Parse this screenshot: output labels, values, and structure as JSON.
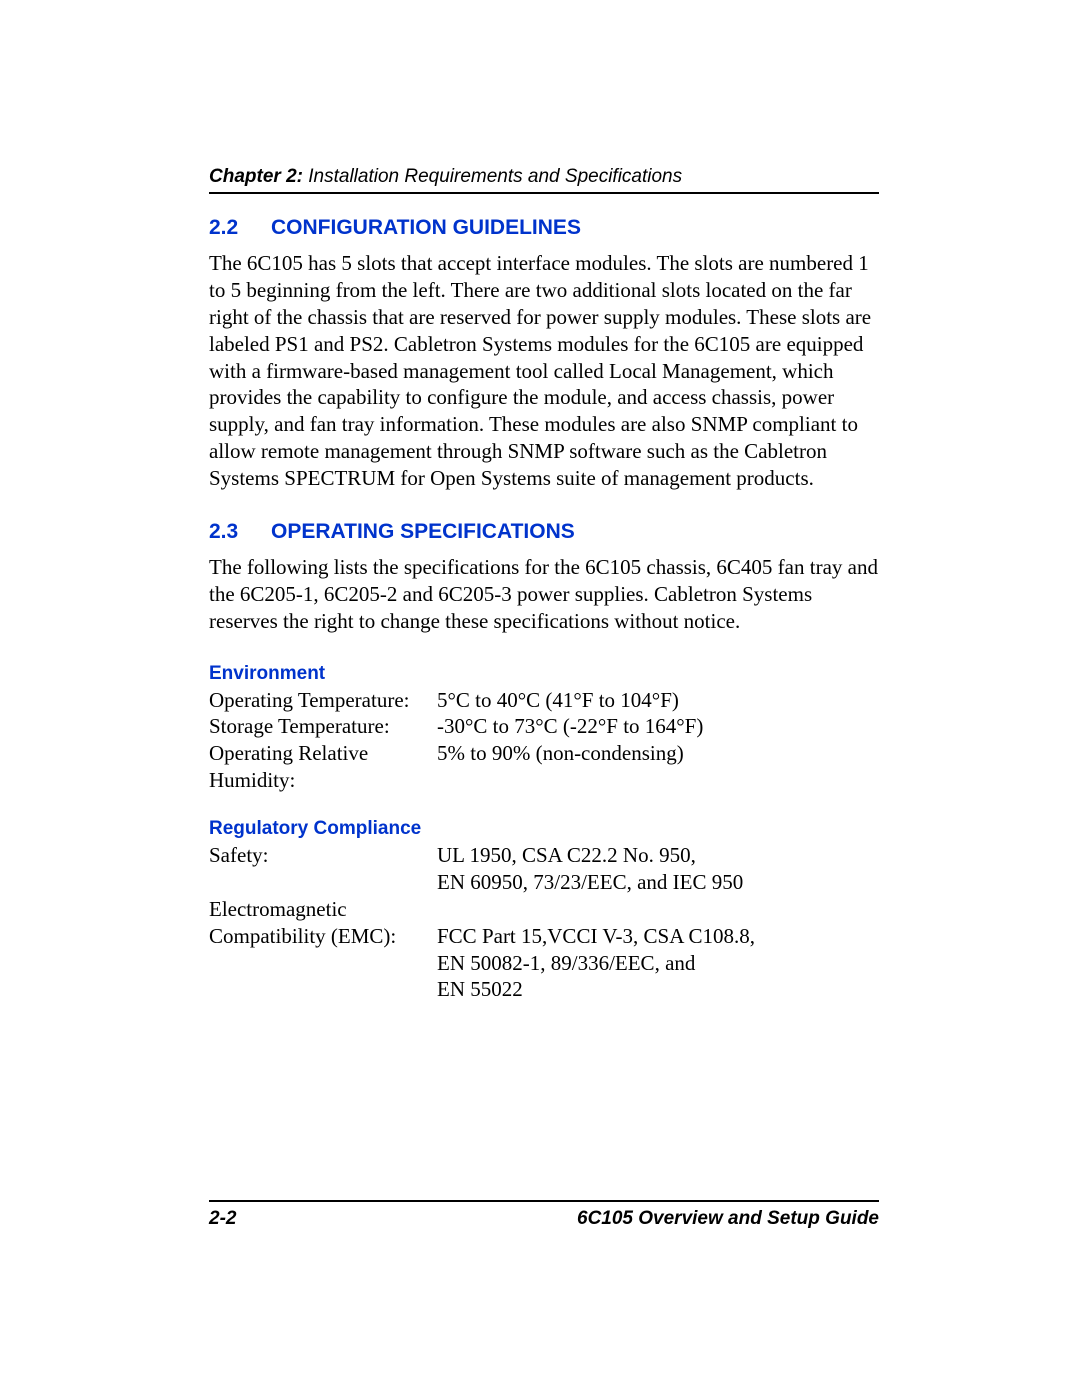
{
  "colors": {
    "heading_blue": "#0033cc",
    "text_black": "#000000",
    "background": "#ffffff",
    "rule": "#000000"
  },
  "typography": {
    "heading_font": "Arial, Helvetica, sans-serif",
    "heading_size_pt": 16,
    "subhead_size_pt": 14,
    "body_font": "Times New Roman, Times, serif",
    "body_size_pt": 16,
    "footer_size_pt": 14
  },
  "header": {
    "chapter_label": "Chapter 2:",
    "chapter_title": " Installation Requirements and Specifications"
  },
  "sections": {
    "s22": {
      "number": "2.2",
      "title": "CONFIGURATION GUIDELINES",
      "body": "The 6C105 has 5 slots that accept interface modules. The slots are numbered 1 to 5 beginning from the left. There are two additional slots located on the far right of the chassis that are reserved for power supply modules. These slots are labeled PS1 and PS2. Cabletron Systems modules for the 6C105 are equipped with a firmware-based management tool called Local Management, which provides the capability to configure the module, and access chassis, power supply, and fan tray information. These modules are also SNMP compliant to allow remote management through SNMP software such as the Cabletron Systems SPECTRUM for Open Systems suite of management products."
    },
    "s23": {
      "number": "2.3",
      "title": "OPERATING SPECIFICATIONS",
      "body": "The following lists the specifications for the 6C105 chassis, 6C405 fan tray and the 6C205-1, 6C205-2 and 6C205-3 power supplies. Cabletron Systems reserves the right to change these specifications without notice."
    }
  },
  "environment": {
    "heading": "Environment",
    "rows": {
      "op_temp": {
        "label": "Operating Temperature:",
        "value": "5°C to 40°C (41°F to 104°F)"
      },
      "stor_temp": {
        "label": "Storage Temperature:",
        "value": "-30°C to 73°C (-22°F to 164°F)"
      },
      "humidity": {
        "label": "Operating Relative Humidity:",
        "value": "5% to 90% (non-condensing)"
      }
    }
  },
  "regulatory": {
    "heading": "Regulatory Compliance",
    "rows": {
      "safety": {
        "label": "Safety:",
        "value_line1": "UL 1950, CSA C22.2 No. 950,",
        "value_line2": "EN 60950, 73/23/EEC, and IEC 950"
      },
      "emc": {
        "label_line1": "Electromagnetic",
        "label_line2": "Compatibility (EMC):",
        "value_line1": "FCC Part 15,VCCI V-3, CSA C108.8,",
        "value_line2": "EN 50082-1, 89/336/EEC, and",
        "value_line3": "EN 55022"
      }
    }
  },
  "footer": {
    "page_number": "2-2",
    "doc_title": "6C105 Overview and Setup Guide"
  }
}
